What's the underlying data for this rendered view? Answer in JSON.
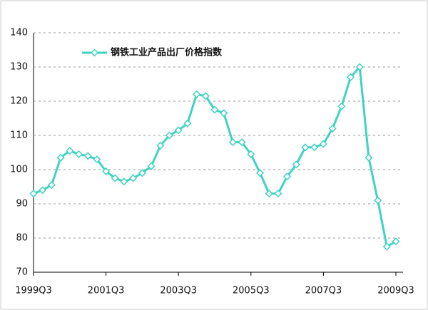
{
  "chart_data": {
    "type": "line",
    "categories": [
      "1999Q3",
      null,
      null,
      null,
      null,
      null,
      null,
      null,
      "2001Q3",
      null,
      null,
      null,
      null,
      null,
      null,
      null,
      "2003Q3",
      null,
      null,
      null,
      null,
      null,
      null,
      null,
      "2005Q3",
      null,
      null,
      null,
      null,
      null,
      null,
      null,
      "2007Q3",
      null,
      null,
      null,
      null,
      null,
      null,
      null,
      "2009Q3"
    ],
    "series": [
      {
        "name": "钢铁工业产品出厂价格指数",
        "color": "#3fd3c1",
        "values": [
          93,
          94,
          95.5,
          103.5,
          105.5,
          104.5,
          104,
          103,
          99.5,
          97.5,
          96.5,
          97.5,
          99,
          101,
          107,
          110,
          111.5,
          113.5,
          122,
          121.5,
          117.5,
          116.5,
          108,
          108,
          104.5,
          99,
          93,
          93,
          98,
          101.5,
          106.5,
          106.5,
          107.5,
          112,
          118.5,
          127,
          130,
          103.5,
          91,
          77.5,
          79
        ]
      }
    ],
    "ylim": [
      70,
      140
    ],
    "yticks": [
      70,
      80,
      90,
      100,
      110,
      120,
      130,
      140
    ],
    "grid": true,
    "legend": "top-left"
  }
}
